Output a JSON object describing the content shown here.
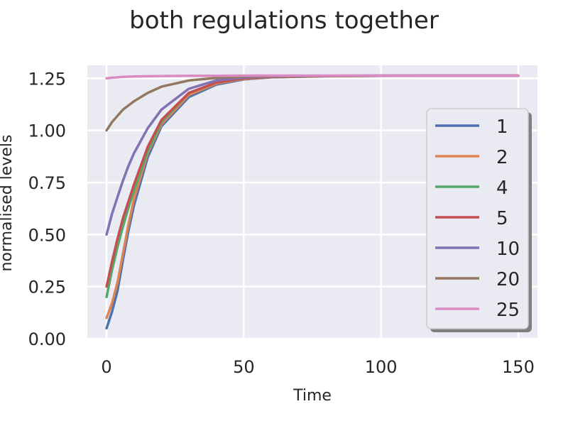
{
  "chart_data": {
    "type": "line",
    "title": "both regulations together",
    "xlabel": "Time",
    "ylabel": "normalised levels",
    "xlim": [
      -7,
      157
    ],
    "ylim": [
      0,
      1.3125
    ],
    "xticks": [
      0,
      50,
      100,
      150
    ],
    "xtick_labels": [
      "0",
      "50",
      "100",
      "150"
    ],
    "yticks": [
      0,
      0.25,
      0.5,
      0.75,
      1.0,
      1.25
    ],
    "ytick_labels": [
      "0.00",
      "0.25",
      "0.50",
      "0.75",
      "1.00",
      "1.25"
    ],
    "grid": true,
    "legend_position": "right",
    "x": [
      0,
      2,
      4,
      6,
      8,
      10,
      15,
      20,
      30,
      40,
      50,
      60,
      80,
      100,
      125,
      150
    ],
    "series": [
      {
        "name": "1",
        "color": "#4c72b0",
        "values": [
          0.05,
          0.13,
          0.23,
          0.38,
          0.52,
          0.64,
          0.87,
          1.02,
          1.16,
          1.22,
          1.245,
          1.255,
          1.26,
          1.262,
          1.263,
          1.263
        ]
      },
      {
        "name": "2",
        "color": "#dd8452",
        "values": [
          0.1,
          0.17,
          0.27,
          0.41,
          0.55,
          0.67,
          0.89,
          1.03,
          1.17,
          1.225,
          1.247,
          1.256,
          1.261,
          1.262,
          1.263,
          1.263
        ]
      },
      {
        "name": "4",
        "color": "#55a868",
        "values": [
          0.2,
          0.33,
          0.44,
          0.54,
          0.63,
          0.71,
          0.9,
          1.04,
          1.18,
          1.23,
          1.25,
          1.257,
          1.261,
          1.262,
          1.263,
          1.263
        ]
      },
      {
        "name": "5",
        "color": "#c44e52",
        "values": [
          0.25,
          0.37,
          0.48,
          0.58,
          0.66,
          0.74,
          0.92,
          1.05,
          1.18,
          1.23,
          1.25,
          1.257,
          1.261,
          1.262,
          1.263,
          1.263
        ]
      },
      {
        "name": "10",
        "color": "#8172b3",
        "values": [
          0.5,
          0.6,
          0.68,
          0.76,
          0.83,
          0.89,
          1.01,
          1.1,
          1.2,
          1.24,
          1.254,
          1.259,
          1.262,
          1.263,
          1.263,
          1.263
        ]
      },
      {
        "name": "20",
        "color": "#937860",
        "values": [
          1.0,
          1.04,
          1.07,
          1.1,
          1.12,
          1.14,
          1.18,
          1.21,
          1.24,
          1.252,
          1.258,
          1.261,
          1.262,
          1.263,
          1.263,
          1.263
        ]
      },
      {
        "name": "25",
        "color": "#da8bc3",
        "values": [
          1.25,
          1.253,
          1.255,
          1.257,
          1.258,
          1.259,
          1.26,
          1.261,
          1.262,
          1.262,
          1.263,
          1.263,
          1.263,
          1.263,
          1.263,
          1.263
        ]
      }
    ],
    "colors": {
      "plot_background": "#eaeaf2",
      "grid": "#ffffff",
      "text": "#262626"
    }
  }
}
